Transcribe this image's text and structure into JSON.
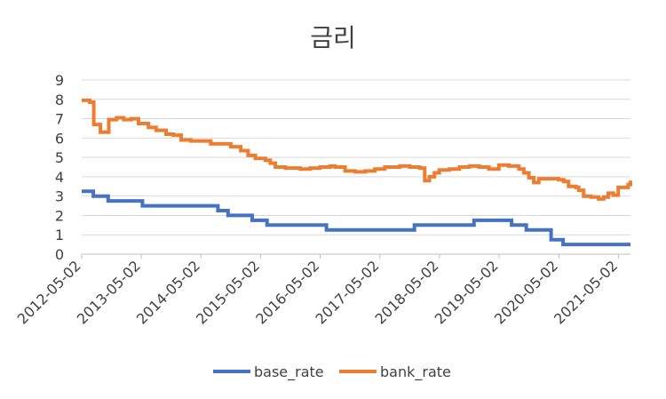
{
  "chart_data": {
    "type": "line",
    "title": "금리",
    "xlabel": "",
    "ylabel": "",
    "ylim": [
      0,
      9
    ],
    "yticks": [
      "0",
      "1",
      "2",
      "3",
      "4",
      "5",
      "6",
      "7",
      "8",
      "9"
    ],
    "xticks": [
      "2012-05-02",
      "2013-05-02",
      "2014-05-02",
      "2015-05-02",
      "2016-05-02",
      "2017-05-02",
      "2018-05-02",
      "2019-05-02",
      "2020-05-02",
      "2021-05-02"
    ],
    "x_range": [
      "2012-05-02",
      "2021-07-15"
    ],
    "grid": true,
    "legend_position": "bottom",
    "series": [
      {
        "name": "base_rate",
        "color": "#4472C4",
        "points": [
          [
            "2012-05-02",
            3.25
          ],
          [
            "2012-07-12",
            3.25
          ],
          [
            "2012-07-12",
            3.0
          ],
          [
            "2012-10-11",
            3.0
          ],
          [
            "2012-10-11",
            2.75
          ],
          [
            "2013-05-09",
            2.75
          ],
          [
            "2013-05-09",
            2.5
          ],
          [
            "2014-08-14",
            2.5
          ],
          [
            "2014-08-14",
            2.25
          ],
          [
            "2014-10-15",
            2.25
          ],
          [
            "2014-10-15",
            2.0
          ],
          [
            "2015-03-12",
            2.0
          ],
          [
            "2015-03-12",
            1.75
          ],
          [
            "2015-06-11",
            1.75
          ],
          [
            "2015-06-11",
            1.5
          ],
          [
            "2016-06-09",
            1.5
          ],
          [
            "2016-06-09",
            1.25
          ],
          [
            "2017-11-30",
            1.25
          ],
          [
            "2017-11-30",
            1.5
          ],
          [
            "2018-11-30",
            1.5
          ],
          [
            "2018-11-30",
            1.75
          ],
          [
            "2019-07-18",
            1.75
          ],
          [
            "2019-07-18",
            1.5
          ],
          [
            "2019-10-16",
            1.5
          ],
          [
            "2019-10-16",
            1.25
          ],
          [
            "2020-03-16",
            1.25
          ],
          [
            "2020-03-16",
            0.75
          ],
          [
            "2020-05-28",
            0.75
          ],
          [
            "2020-05-28",
            0.5
          ],
          [
            "2021-07-15",
            0.5
          ]
        ]
      },
      {
        "name": "bank_rate",
        "color": "#ED7D31",
        "points": [
          [
            "2012-05-02",
            7.95
          ],
          [
            "2012-06-20",
            7.85
          ],
          [
            "2012-07-15",
            6.7
          ],
          [
            "2012-08-15",
            6.7
          ],
          [
            "2012-08-25",
            6.3
          ],
          [
            "2012-10-01",
            6.3
          ],
          [
            "2012-10-15",
            6.95
          ],
          [
            "2012-12-01",
            7.05
          ],
          [
            "2013-01-15",
            6.95
          ],
          [
            "2013-03-01",
            7.0
          ],
          [
            "2013-04-15",
            6.75
          ],
          [
            "2013-06-15",
            6.55
          ],
          [
            "2013-08-01",
            6.4
          ],
          [
            "2013-10-01",
            6.2
          ],
          [
            "2013-11-15",
            6.15
          ],
          [
            "2014-01-01",
            5.9
          ],
          [
            "2014-03-01",
            5.85
          ],
          [
            "2014-05-01",
            5.85
          ],
          [
            "2014-07-01",
            5.7
          ],
          [
            "2014-09-01",
            5.7
          ],
          [
            "2014-11-01",
            5.55
          ],
          [
            "2015-01-01",
            5.35
          ],
          [
            "2015-02-15",
            5.1
          ],
          [
            "2015-04-01",
            4.95
          ],
          [
            "2015-05-01",
            4.95
          ],
          [
            "2015-06-01",
            4.85
          ],
          [
            "2015-07-01",
            4.7
          ],
          [
            "2015-08-01",
            4.5
          ],
          [
            "2015-10-01",
            4.45
          ],
          [
            "2016-01-01",
            4.4
          ],
          [
            "2016-03-01",
            4.45
          ],
          [
            "2016-05-01",
            4.5
          ],
          [
            "2016-06-01",
            4.5
          ],
          [
            "2016-07-01",
            4.55
          ],
          [
            "2016-08-01",
            4.5
          ],
          [
            "2016-10-01",
            4.3
          ],
          [
            "2016-12-01",
            4.25
          ],
          [
            "2017-02-01",
            4.3
          ],
          [
            "2017-04-01",
            4.4
          ],
          [
            "2017-06-01",
            4.5
          ],
          [
            "2017-09-01",
            4.55
          ],
          [
            "2017-11-01",
            4.5
          ],
          [
            "2018-01-01",
            4.45
          ],
          [
            "2018-02-01",
            3.8
          ],
          [
            "2018-03-01",
            4.0
          ],
          [
            "2018-04-01",
            4.2
          ],
          [
            "2018-05-01",
            4.35
          ],
          [
            "2018-07-01",
            4.4
          ],
          [
            "2018-09-01",
            4.5
          ],
          [
            "2018-11-01",
            4.55
          ],
          [
            "2019-01-01",
            4.5
          ],
          [
            "2019-03-01",
            4.4
          ],
          [
            "2019-05-01",
            4.6
          ],
          [
            "2019-07-01",
            4.55
          ],
          [
            "2019-08-01",
            4.55
          ],
          [
            "2019-09-01",
            4.4
          ],
          [
            "2019-10-01",
            4.2
          ],
          [
            "2019-11-01",
            3.95
          ],
          [
            "2019-12-01",
            3.7
          ],
          [
            "2020-01-01",
            3.9
          ],
          [
            "2020-03-01",
            3.9
          ],
          [
            "2020-05-01",
            3.85
          ],
          [
            "2020-06-01",
            3.75
          ],
          [
            "2020-07-01",
            3.5
          ],
          [
            "2020-08-15",
            3.45
          ],
          [
            "2020-09-01",
            3.3
          ],
          [
            "2020-10-01",
            3.0
          ],
          [
            "2020-11-15",
            2.95
          ],
          [
            "2021-01-01",
            2.85
          ],
          [
            "2021-02-01",
            2.95
          ],
          [
            "2021-03-01",
            3.15
          ],
          [
            "2021-04-01",
            3.05
          ],
          [
            "2021-05-01",
            3.45
          ],
          [
            "2021-06-01",
            3.45
          ],
          [
            "2021-07-01",
            3.6
          ],
          [
            "2021-08-01",
            3.65
          ],
          [
            "2021-09-01",
            3.7
          ],
          [
            "2021-10-01",
            3.75
          ],
          [
            "2021-11-15",
            3.8
          ]
        ]
      }
    ]
  }
}
